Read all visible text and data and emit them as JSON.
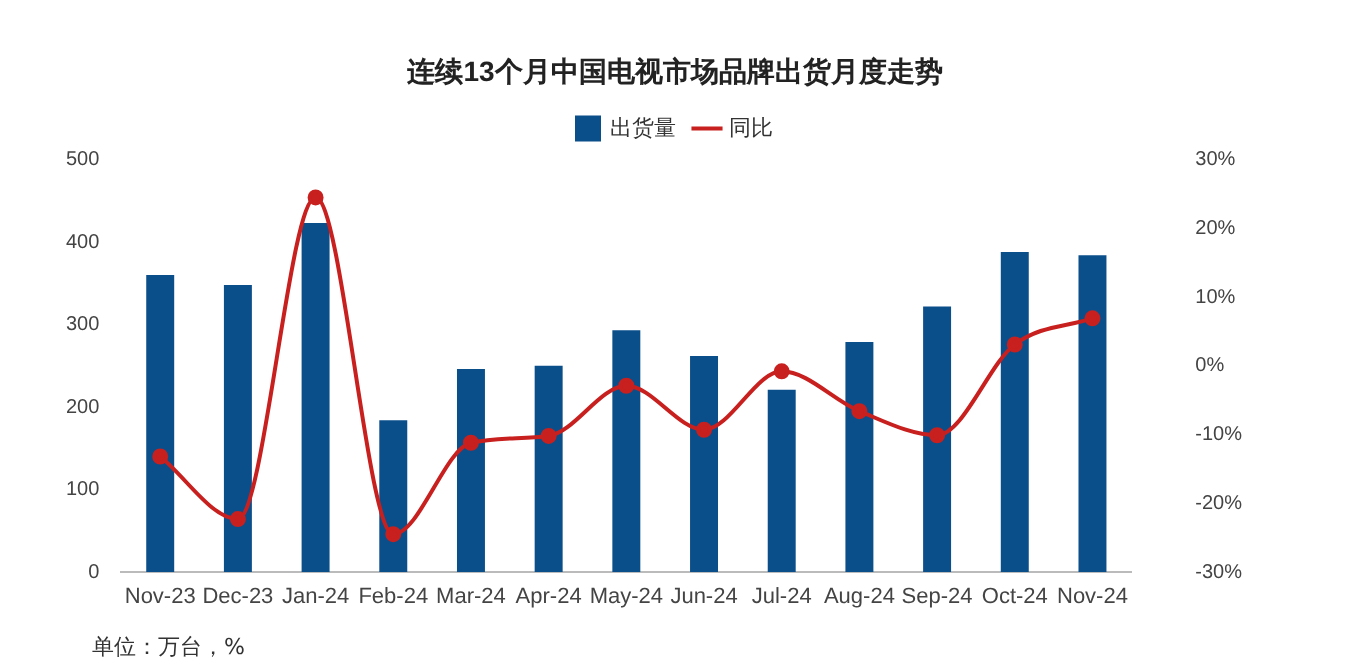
{
  "chart_data": {
    "type": "bar",
    "title": "连续13个月中国电视市场品牌出货月度走势",
    "categories": [
      "Nov-23",
      "Dec-23",
      "Jan-24",
      "Feb-24",
      "Mar-24",
      "Apr-24",
      "May-24",
      "Jun-24",
      "Jul-24",
      "Aug-24",
      "Sep-24",
      "Oct-24",
      "Nov-24"
    ],
    "series": [
      {
        "name": "出货量",
        "color": "#0b4f8a",
        "values": [
          360,
          348,
          423,
          184,
          246,
          250,
          293,
          262,
          221,
          279,
          322,
          388,
          384
        ]
      },
      {
        "name": "同比",
        "type": "line",
        "axis": "y2",
        "color": "#c8201e",
        "values": [
          -13.2,
          -22.3,
          24.5,
          -24.5,
          -11.2,
          -10.2,
          -2.9,
          -9.3,
          -0.8,
          -6.6,
          -10.1,
          3.1,
          6.9
        ]
      }
    ],
    "ylim": [
      0,
      500
    ],
    "yticks": [
      0,
      100,
      200,
      300,
      400,
      500
    ],
    "y2lim": [
      -30,
      30
    ],
    "y2ticks": [
      {
        "value": -30,
        "label": "-30%"
      },
      {
        "value": -20,
        "label": "-20%"
      },
      {
        "value": -10,
        "label": "-10%"
      },
      {
        "value": 0,
        "label": "0%"
      },
      {
        "value": 10,
        "label": "10%"
      },
      {
        "value": 20,
        "label": "20%"
      },
      {
        "value": 30,
        "label": "30%"
      }
    ],
    "grid": false,
    "legend": "top",
    "marker": "circle",
    "line_style": "solid",
    "annotations": [
      "单位：万台，%"
    ]
  }
}
